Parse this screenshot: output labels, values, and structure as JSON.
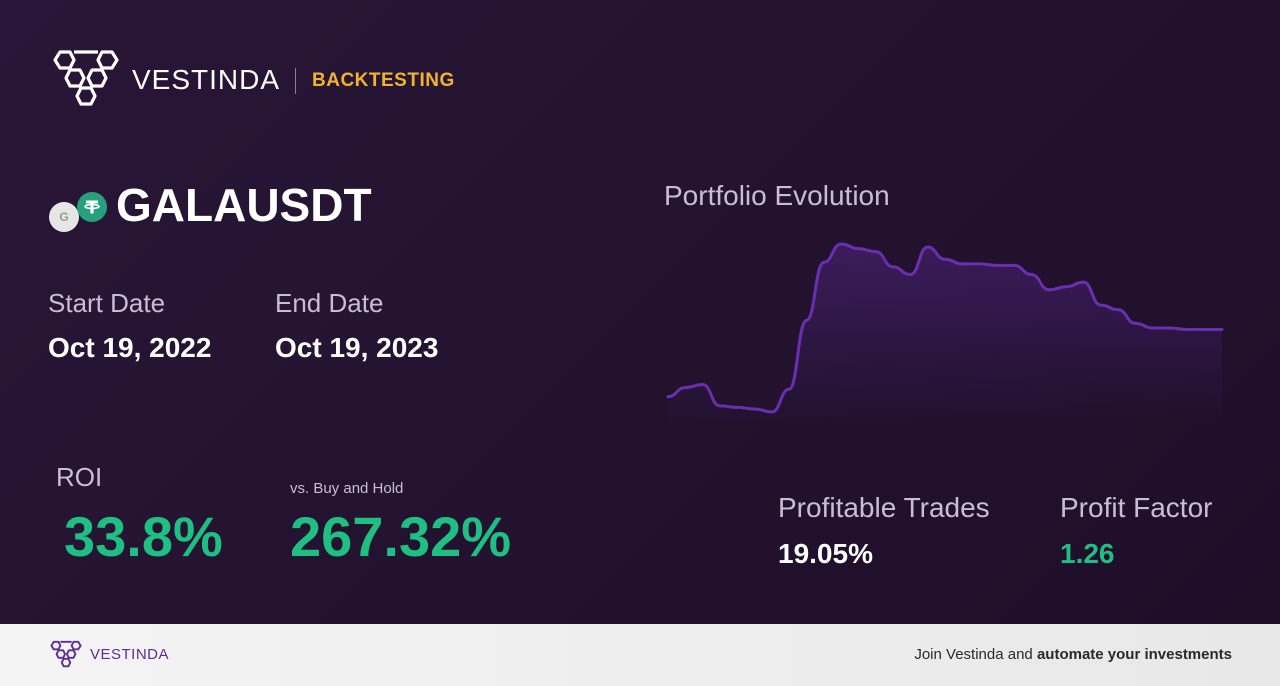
{
  "brand": {
    "name": "VESTINDA",
    "tag": "BACKTESTING"
  },
  "pair": {
    "name": "GALAUSDT",
    "base_icon_letter": "G",
    "quote_icon": "tether-icon"
  },
  "dates": {
    "start_label": "Start Date",
    "start_value": "Oct 19, 2022",
    "end_label": "End Date",
    "end_value": "Oct 19, 2023"
  },
  "metrics": {
    "roi_label": "ROI",
    "roi_value": "33.8%",
    "vs_label": "vs. Buy and Hold",
    "vs_value": "267.32%",
    "profitable_label": "Profitable Trades",
    "profitable_value": "19.05%",
    "profit_factor_label": "Profit Factor",
    "profit_factor_value": "1.26"
  },
  "chart": {
    "title": "Portfolio Evolution",
    "color": "#6a2fb0",
    "series": [
      40,
      46,
      48,
      34,
      33,
      32,
      30,
      45,
      90,
      128,
      140,
      137,
      135,
      125,
      120,
      138,
      130,
      127,
      127,
      126,
      126,
      120,
      110,
      112,
      115,
      100,
      97,
      88,
      85,
      85,
      84,
      84,
      84
    ]
  },
  "colors": {
    "accent": "#f0b429",
    "positive": "#1fbf84",
    "brand_purple": "#5e2b97",
    "tether": "#26a17b"
  },
  "footer": {
    "brand": "VESTINDA",
    "cta_prefix": "Join Vestinda and ",
    "cta_bold": "automate your investments"
  }
}
